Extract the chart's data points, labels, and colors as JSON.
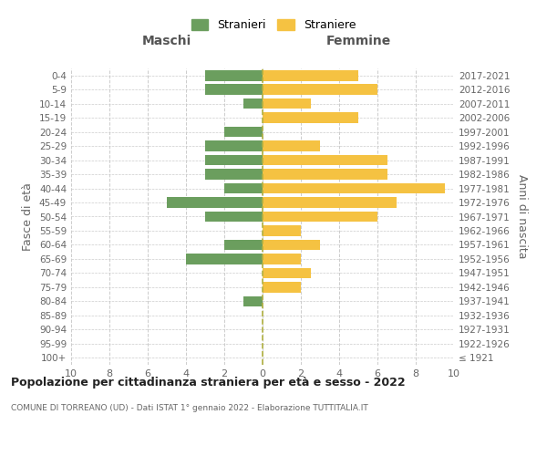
{
  "age_groups": [
    "100+",
    "95-99",
    "90-94",
    "85-89",
    "80-84",
    "75-79",
    "70-74",
    "65-69",
    "60-64",
    "55-59",
    "50-54",
    "45-49",
    "40-44",
    "35-39",
    "30-34",
    "25-29",
    "20-24",
    "15-19",
    "10-14",
    "5-9",
    "0-4"
  ],
  "birth_years": [
    "≤ 1921",
    "1922-1926",
    "1927-1931",
    "1932-1936",
    "1937-1941",
    "1942-1946",
    "1947-1951",
    "1952-1956",
    "1957-1961",
    "1962-1966",
    "1967-1971",
    "1972-1976",
    "1977-1981",
    "1982-1986",
    "1987-1991",
    "1992-1996",
    "1997-2001",
    "2002-2006",
    "2007-2011",
    "2012-2016",
    "2017-2021"
  ],
  "maschi": [
    0,
    0,
    0,
    0,
    1,
    0,
    0,
    4,
    2,
    0,
    3,
    5,
    2,
    3,
    3,
    3,
    2,
    0,
    1,
    3,
    3
  ],
  "femmine": [
    0,
    0,
    0,
    0,
    0,
    2,
    2.5,
    2,
    3,
    2,
    6,
    7,
    9.5,
    6.5,
    6.5,
    3,
    0,
    5,
    2.5,
    6,
    5
  ],
  "male_color": "#6b9e5e",
  "female_color": "#f5c242",
  "background_color": "#ffffff",
  "grid_color": "#cccccc",
  "center_line_color": "#b0b040",
  "title": "Popolazione per cittadinanza straniera per età e sesso - 2022",
  "subtitle": "COMUNE DI TORREANO (UD) - Dati ISTAT 1° gennaio 2022 - Elaborazione TUTTITALIA.IT",
  "xlabel_left": "Maschi",
  "xlabel_right": "Femmine",
  "ylabel_left": "Fasce di età",
  "ylabel_right": "Anni di nascita",
  "legend_maschi": "Stranieri",
  "legend_femmine": "Straniere",
  "xlim": 10,
  "bar_height": 0.75
}
